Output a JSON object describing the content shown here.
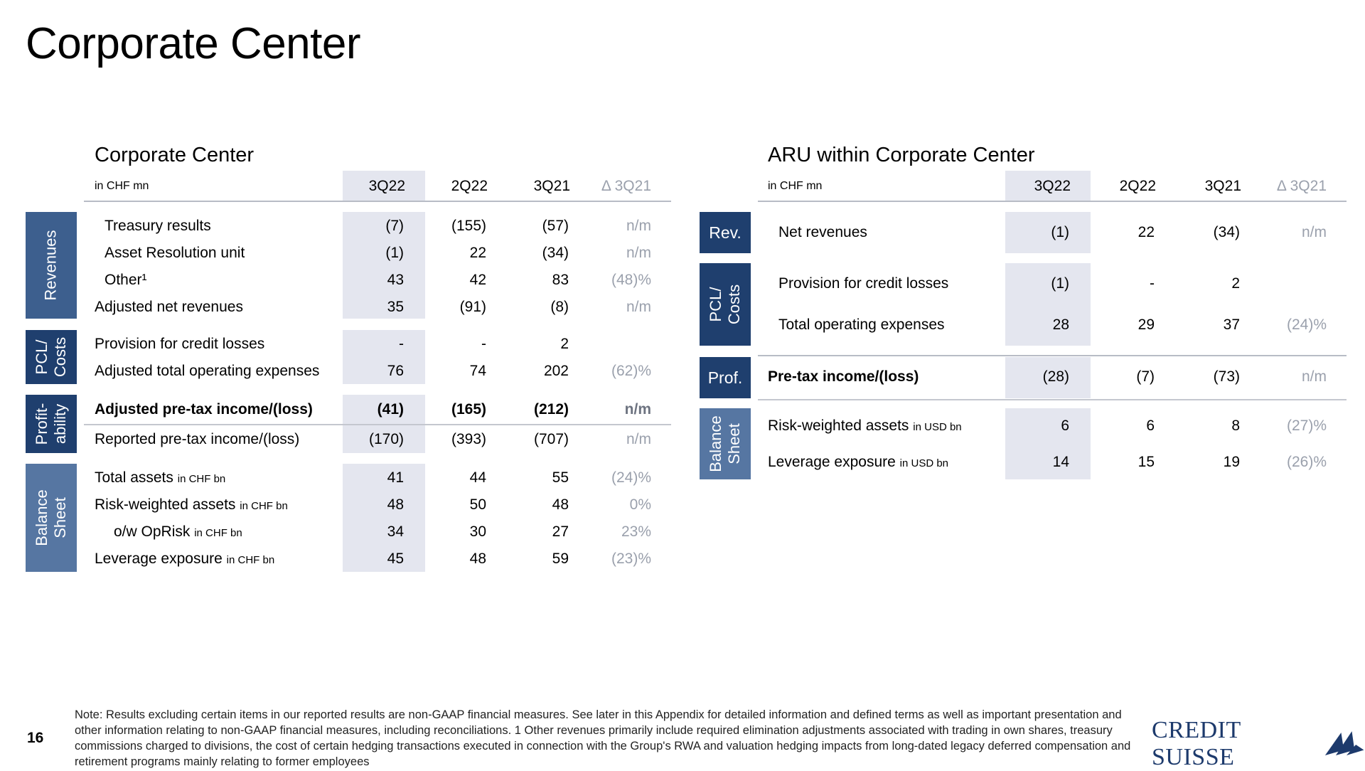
{
  "page_title": "Corporate Center",
  "left": {
    "title": "Corporate Center",
    "unit": "in CHF mn",
    "columns": [
      "3Q22",
      "2Q22",
      "3Q21",
      "Δ 3Q21"
    ],
    "tabs": {
      "revenues": "Revenues",
      "pcl_costs": "PCL/ Costs",
      "profitability": "Profit- ability",
      "balance_sheet": "Balance Sheet"
    },
    "rows": [
      {
        "label": "Treasury results",
        "unit": "",
        "values": [
          "(7)",
          "(155)",
          "(57)",
          "n/m"
        ]
      },
      {
        "label": "Asset Resolution unit",
        "unit": "",
        "values": [
          "(1)",
          "22",
          "(34)",
          "n/m"
        ]
      },
      {
        "label": "Other¹",
        "unit": "",
        "values": [
          "43",
          "42",
          "83",
          "(48)%"
        ]
      },
      {
        "label": "Adjusted net revenues",
        "unit": "",
        "values": [
          "35",
          "(91)",
          "(8)",
          "n/m"
        ]
      },
      {
        "label": "Provision for credit losses",
        "unit": "",
        "values": [
          "-",
          "-",
          "2",
          ""
        ]
      },
      {
        "label": "Adjusted total operating expenses",
        "unit": "",
        "values": [
          "76",
          "74",
          "202",
          "(62)%"
        ]
      },
      {
        "label": "Adjusted pre-tax income/(loss)",
        "unit": "",
        "values": [
          "(41)",
          "(165)",
          "(212)",
          "n/m"
        ]
      },
      {
        "label": "Reported pre-tax income/(loss)",
        "unit": "",
        "values": [
          "(170)",
          "(393)",
          "(707)",
          "n/m"
        ]
      },
      {
        "label": "Total assets",
        "unit": "in CHF bn",
        "values": [
          "41",
          "44",
          "55",
          "(24)%"
        ]
      },
      {
        "label": "Risk-weighted assets",
        "unit": "in CHF bn",
        "values": [
          "48",
          "50",
          "48",
          "0%"
        ]
      },
      {
        "label": "o/w OpRisk",
        "unit": "in CHF bn",
        "values": [
          "34",
          "30",
          "27",
          "23%"
        ]
      },
      {
        "label": "Leverage exposure",
        "unit": "in CHF bn",
        "values": [
          "45",
          "48",
          "59",
          "(23)%"
        ]
      }
    ]
  },
  "right": {
    "title": "ARU within Corporate Center",
    "unit": "in CHF mn",
    "columns": [
      "3Q22",
      "2Q22",
      "3Q21",
      "Δ 3Q21"
    ],
    "tabs": {
      "rev": "Rev.",
      "pcl_costs": "PCL/ Costs",
      "prof": "Prof.",
      "balance_sheet": "Balance Sheet"
    },
    "rows": [
      {
        "label": "Net revenues",
        "unit": "",
        "values": [
          "(1)",
          "22",
          "(34)",
          "n/m"
        ]
      },
      {
        "label": "Provision for credit losses",
        "unit": "",
        "values": [
          "(1)",
          "-",
          "2",
          ""
        ]
      },
      {
        "label": "Total operating expenses",
        "unit": "",
        "values": [
          "28",
          "29",
          "37",
          "(24)%"
        ]
      },
      {
        "label": "Pre-tax income/(loss)",
        "unit": "",
        "values": [
          "(28)",
          "(7)",
          "(73)",
          "n/m"
        ]
      },
      {
        "label": "Risk-weighted assets",
        "unit": "in USD bn",
        "values": [
          "6",
          "6",
          "8",
          "(27)%"
        ]
      },
      {
        "label": "Leverage exposure",
        "unit": "in USD bn",
        "values": [
          "14",
          "15",
          "19",
          "(26)%"
        ]
      }
    ]
  },
  "footer": {
    "note": "Note: Results excluding certain items in our reported results are non-GAAP financial measures. See later in this Appendix for detailed information and defined terms as well as important presentation and other information relating to non-GAAP financial measures, including reconciliations.     1 Other revenues primarily include required elimination adjustments associated with trading in own shares, treasury commissions charged to divisions, the cost of certain hedging transactions executed in connection with the Group's RWA and valuation hedging impacts from long-dated legacy deferred compensation and retirement programs mainly relating to former employees",
    "page_number": "16",
    "logo_text": "CREDIT SUISSE",
    "brand_color": "#1d3a6c"
  }
}
